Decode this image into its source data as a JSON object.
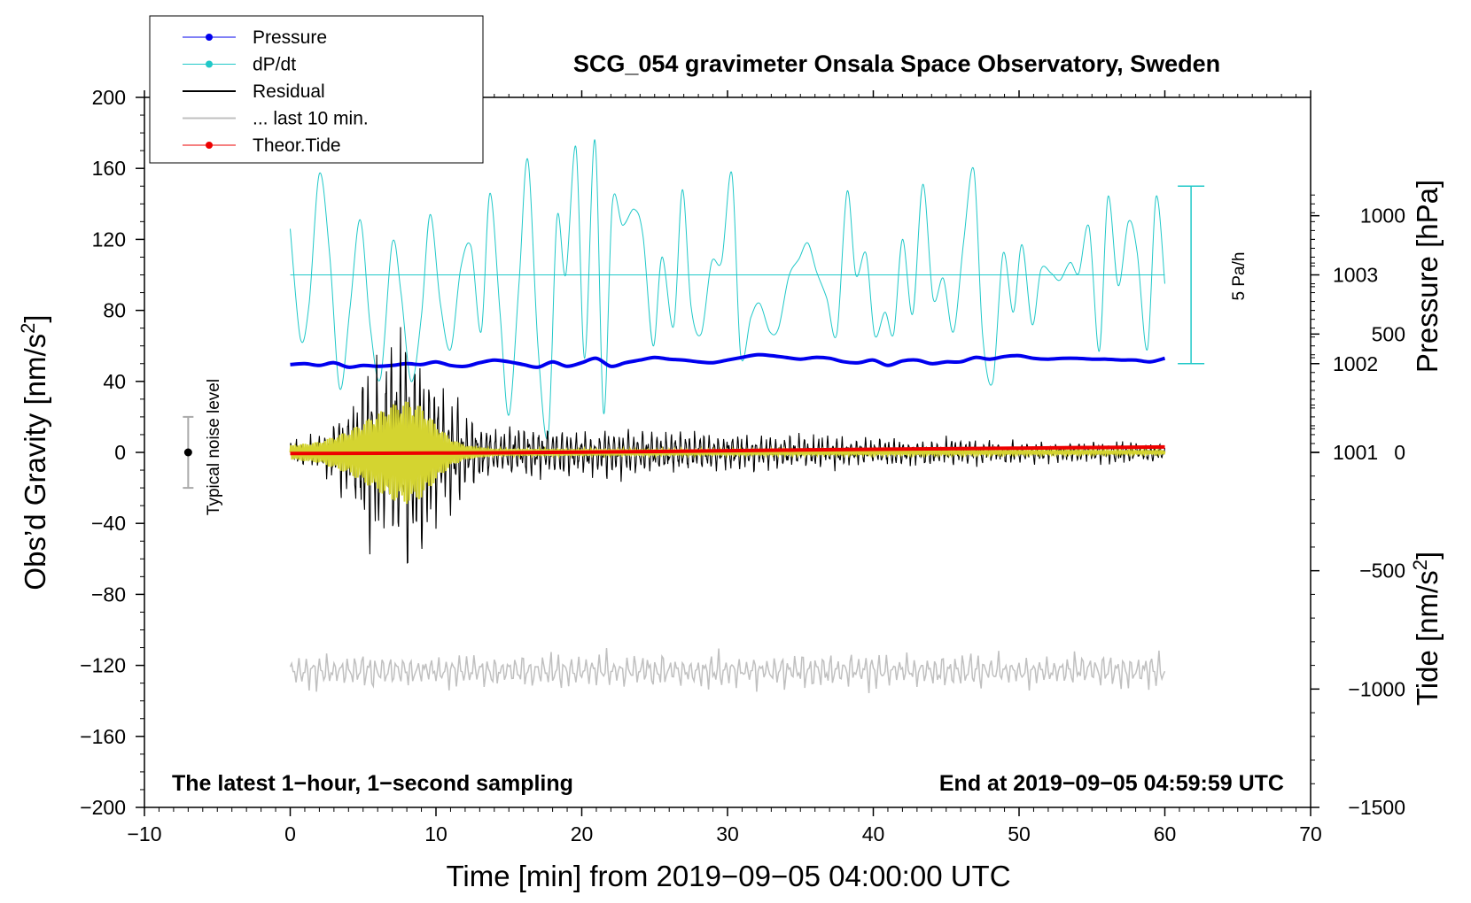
{
  "chart_data": {
    "type": "line",
    "title": "SCG_054 gravimeter Onsala Space Observatory, Sweden",
    "xlabel": "Time [min] from 2019−09−05 04:00:00 UTC",
    "ylabel": "Obs’d Gravity [nm/s",
    "ylabel_sup": "2",
    "ylabel_close": "]",
    "y2label": "Pressure [hPa]",
    "y3label": "Tide [nm/s",
    "y3label_sup": "2",
    "y3label_close": "]",
    "xlim": [
      -10,
      70
    ],
    "ylim": [
      -200,
      200
    ],
    "xticks": [
      "−10",
      "0",
      "10",
      "20",
      "30",
      "40",
      "50",
      "60",
      "70"
    ],
    "xtick_values": [
      -10,
      0,
      10,
      20,
      30,
      40,
      50,
      60,
      70
    ],
    "yticks": [
      "−200",
      "−160",
      "−120",
      "−80",
      "−40",
      "0",
      "40",
      "80",
      "120",
      "160",
      "200"
    ],
    "ytick_values": [
      -200,
      -160,
      -120,
      -80,
      -40,
      0,
      40,
      80,
      120,
      160,
      200
    ],
    "pressure_ticks": [
      "1003",
      "1002",
      "1001"
    ],
    "pressure_tick_values": [
      1003,
      1002,
      1001
    ],
    "pressure_range": [
      997,
      1005
    ],
    "tide_ticks": [
      "1000",
      "500",
      "0",
      "−500",
      "−1000",
      "−1500"
    ],
    "tide_tick_values": [
      1000,
      500,
      0,
      -500,
      -1000,
      -1500
    ],
    "tide_range": [
      -1500,
      1500
    ],
    "annotations": {
      "bottom_left": "The latest 1−hour, 1−second sampling",
      "bottom_right": "End at 2019−09−05 04:59:59 UTC",
      "noise": "Typical noise level",
      "scale_bar": "5 Pa/h"
    },
    "noise_bar": {
      "x": -7,
      "center": 0,
      "half_range": 20
    },
    "dpdt_scale_bar": {
      "x": 61.8,
      "top": 150,
      "bottom": 50,
      "baseline_gravity": 100
    },
    "legend": [
      {
        "name": "Pressure",
        "color": "#0000ee",
        "marker": "dot"
      },
      {
        "name": "dP/dt",
        "color": "#20c8c8",
        "marker": "dot"
      },
      {
        "name": "Residual",
        "color": "#000000",
        "marker": "line"
      },
      {
        "name": "... last 10 min.",
        "color": "#c0c0c0",
        "marker": "line"
      },
      {
        "name": "Theor.Tide",
        "color": "#ee0000",
        "marker": "dot"
      }
    ],
    "legend_position": "top-left",
    "series": [
      {
        "name": "Pressure",
        "axis": "pressure",
        "color": "#0000ee",
        "x": [
          0,
          1,
          2,
          3,
          4,
          5,
          6,
          7,
          8,
          9,
          10,
          11,
          12,
          13,
          14,
          15,
          16,
          17,
          18,
          19,
          20,
          21,
          22,
          23,
          24,
          25,
          26,
          27,
          28,
          29,
          30,
          31,
          32,
          33,
          34,
          35,
          36,
          37,
          38,
          39,
          40,
          41,
          42,
          43,
          44,
          45,
          46,
          47,
          48,
          49,
          50,
          51,
          52,
          53,
          54,
          55,
          56,
          57,
          58,
          59,
          60
        ],
        "values": [
          1001.99,
          1002.0,
          1001.98,
          1002.01,
          1001.96,
          1001.98,
          1001.97,
          1001.98,
          1002.0,
          1001.99,
          1002.02,
          1001.98,
          1001.97,
          1002.01,
          1002.04,
          1002.02,
          1001.99,
          1001.96,
          1002.02,
          1001.97,
          1002.01,
          1002.06,
          1001.97,
          1002.01,
          1002.04,
          1002.07,
          1002.05,
          1002.04,
          1002.02,
          1002.01,
          1002.04,
          1002.07,
          1002.1,
          1002.09,
          1002.07,
          1002.05,
          1002.07,
          1002.06,
          1002.02,
          1002.01,
          1002.04,
          1001.98,
          1002.03,
          1002.04,
          1002.0,
          1002.02,
          1002.02,
          1002.07,
          1002.05,
          1002.08,
          1002.09,
          1002.06,
          1002.05,
          1002.06,
          1002.06,
          1002.05,
          1002.05,
          1002.04,
          1002.04,
          1002.02,
          1002.06
        ]
      },
      {
        "name": "dP/dt",
        "axis": "gravity",
        "color": "#20c8c8",
        "x": [
          0,
          0.7,
          1.3,
          2.0,
          2.7,
          3.4,
          4.1,
          4.8,
          5.5,
          6.2,
          7.0,
          7.6,
          8.3,
          9.0,
          9.6,
          10.3,
          11.0,
          11.7,
          12.4,
          13.1,
          13.7,
          14.4,
          15.0,
          15.7,
          16.3,
          17.0,
          17.7,
          18.3,
          18.9,
          19.6,
          20.2,
          20.9,
          21.5,
          22.1,
          22.8,
          23.6,
          24.2,
          24.9,
          25.5,
          26.3,
          26.9,
          27.5,
          28.2,
          28.9,
          29.6,
          30.3,
          30.9,
          31.6,
          32.2,
          32.9,
          33.5,
          34.2,
          34.9,
          35.5,
          36.1,
          36.8,
          37.5,
          38.2,
          38.8,
          39.5,
          40.1,
          40.8,
          41.4,
          42.0,
          42.7,
          43.4,
          44.1,
          44.8,
          45.5,
          46.2,
          46.9,
          47.5,
          48.2,
          48.9,
          49.6,
          50.2,
          50.9,
          51.5,
          52.2,
          52.8,
          53.5,
          54.1,
          54.8,
          55.5,
          56.1,
          56.8,
          57.5,
          58.1,
          58.8,
          59.4,
          60.0
        ],
        "values": [
          126,
          64,
          84,
          157,
          112,
          36,
          81,
          131,
          70,
          42,
          118,
          90,
          40,
          77,
          134,
          84,
          58,
          104,
          116,
          68,
          146,
          78,
          21,
          96,
          165,
          59,
          10,
          132,
          100,
          172,
          53,
          176,
          22,
          140,
          128,
          137,
          122,
          60,
          110,
          71,
          148,
          82,
          67,
          107,
          108,
          157,
          55,
          76,
          84,
          68,
          70,
          99,
          109,
          118,
          102,
          87,
          67,
          147,
          100,
          112,
          66,
          79,
          67,
          120,
          78,
          151,
          87,
          98,
          68,
          119,
          159,
          66,
          40,
          112,
          79,
          117,
          72,
          103,
          101,
          97,
          107,
          101,
          127,
          57,
          144,
          94,
          130,
          113,
          58,
          144,
          95
        ]
      },
      {
        "name": "Residual",
        "axis": "gravity",
        "color": "#000000",
        "envelope_x": [
          0,
          2,
          4,
          5,
          6,
          7,
          7.5,
          8,
          8.5,
          9,
          10,
          11,
          12,
          13,
          14,
          16,
          20,
          25,
          30,
          35,
          40,
          45,
          50,
          55,
          60
        ],
        "envelope_amplitude": [
          6,
          10,
          28,
          45,
          62,
          70,
          75,
          78,
          72,
          58,
          40,
          32,
          22,
          20,
          12,
          14,
          13,
          12,
          10,
          9,
          7,
          7,
          6,
          6,
          5
        ]
      },
      {
        "name": "Filtered",
        "axis": "gravity",
        "color": "#d4d430",
        "envelope_x": [
          0,
          2,
          4,
          6,
          7,
          8,
          9,
          10,
          11,
          12,
          14,
          60
        ],
        "envelope_amplitude": [
          4,
          6,
          12,
          22,
          27,
          29,
          26,
          16,
          8,
          4,
          2,
          1
        ]
      },
      {
        "name": "... last 10 min.",
        "axis": "gravity",
        "color": "#c0c0c0",
        "baseline": -123,
        "amplitude": 9
      },
      {
        "name": "Theor.Tide",
        "axis": "tide",
        "color": "#ee0000",
        "x": [
          0,
          10,
          20,
          30,
          40,
          50,
          60
        ],
        "values": [
          -5,
          -3,
          1,
          7,
          13,
          18,
          23
        ]
      }
    ]
  }
}
